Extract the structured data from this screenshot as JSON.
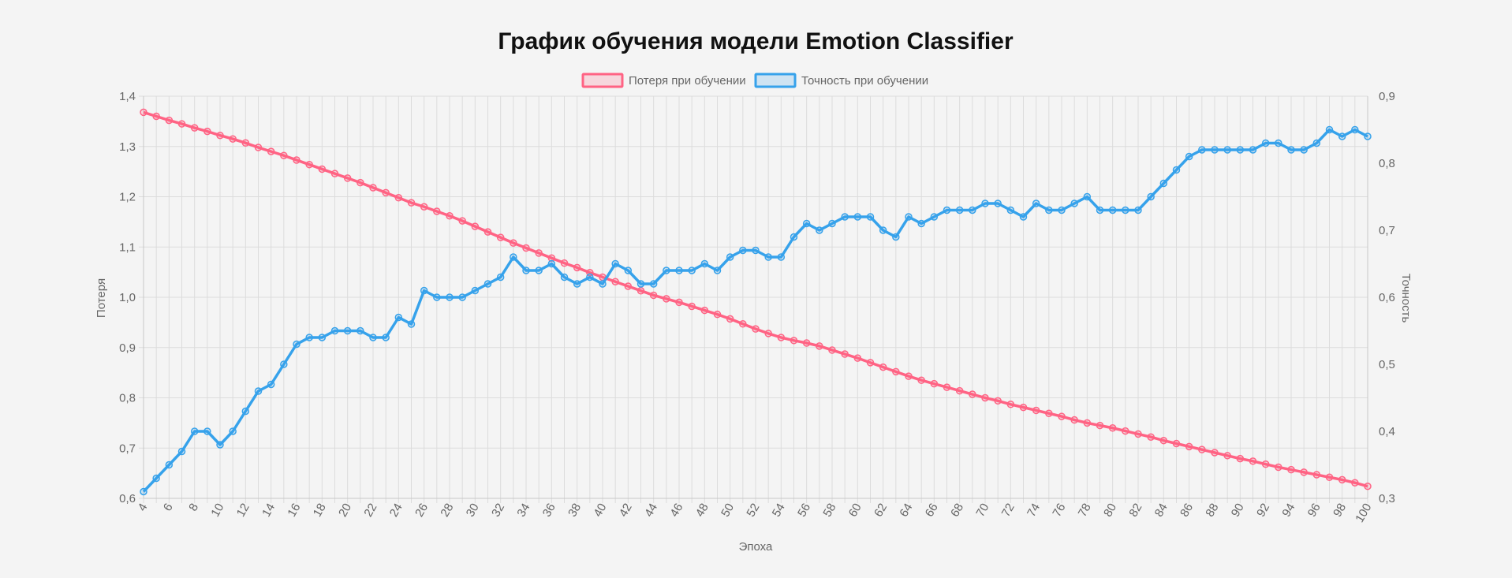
{
  "chart_data": {
    "type": "line",
    "title": "График обучения модели Emotion Classifier",
    "xlabel": "Эпоха",
    "ylabel": "Потеря",
    "y2label": "Точность",
    "x": [
      4,
      5,
      6,
      7,
      8,
      9,
      10,
      11,
      12,
      13,
      14,
      15,
      16,
      17,
      18,
      19,
      20,
      21,
      22,
      23,
      24,
      25,
      26,
      27,
      28,
      29,
      30,
      31,
      32,
      33,
      34,
      35,
      36,
      37,
      38,
      39,
      40,
      41,
      42,
      43,
      44,
      45,
      46,
      47,
      48,
      49,
      50,
      51,
      52,
      53,
      54,
      55,
      56,
      57,
      58,
      59,
      60,
      61,
      62,
      63,
      64,
      65,
      66,
      67,
      68,
      69,
      70,
      71,
      72,
      73,
      74,
      75,
      76,
      77,
      78,
      79,
      80,
      81,
      82,
      83,
      84,
      85,
      86,
      87,
      88,
      89,
      90,
      91,
      92,
      93,
      94,
      95,
      96,
      97,
      98,
      99,
      100
    ],
    "x_ticks": [
      4,
      6,
      8,
      10,
      12,
      14,
      16,
      18,
      20,
      22,
      24,
      26,
      28,
      30,
      32,
      34,
      36,
      38,
      40,
      42,
      44,
      46,
      48,
      50,
      52,
      54,
      56,
      58,
      60,
      62,
      64,
      66,
      68,
      70,
      72,
      74,
      76,
      78,
      80,
      82,
      84,
      86,
      88,
      90,
      92,
      94,
      96,
      98,
      100
    ],
    "ylim": [
      0.6,
      1.4
    ],
    "y_ticks": [
      "0,6",
      "0,7",
      "0,8",
      "0,9",
      "1,0",
      "1,1",
      "1,2",
      "1,3",
      "1,4"
    ],
    "y2lim": [
      0.3,
      0.9
    ],
    "y2_ticks": [
      "0,3",
      "0,4",
      "0,5",
      "0,6",
      "0,7",
      "0,8",
      "0,9"
    ],
    "grid": true,
    "legend_position": "top",
    "series": [
      {
        "name": "Потеря при обучении",
        "axis": "left",
        "color": "#ff6384",
        "fill": "rgba(255,99,132,0.2)",
        "values": [
          1.368,
          1.36,
          1.352,
          1.345,
          1.337,
          1.33,
          1.322,
          1.315,
          1.307,
          1.298,
          1.29,
          1.282,
          1.273,
          1.264,
          1.255,
          1.246,
          1.237,
          1.228,
          1.218,
          1.208,
          1.198,
          1.188,
          1.18,
          1.171,
          1.162,
          1.152,
          1.141,
          1.13,
          1.119,
          1.108,
          1.098,
          1.088,
          1.078,
          1.068,
          1.059,
          1.049,
          1.04,
          1.031,
          1.022,
          1.013,
          1.004,
          0.997,
          0.99,
          0.982,
          0.974,
          0.966,
          0.957,
          0.947,
          0.937,
          0.928,
          0.92,
          0.914,
          0.909,
          0.903,
          0.895,
          0.887,
          0.879,
          0.87,
          0.861,
          0.852,
          0.843,
          0.835,
          0.828,
          0.821,
          0.814,
          0.807,
          0.8,
          0.794,
          0.787,
          0.781,
          0.775,
          0.769,
          0.763,
          0.756,
          0.75,
          0.745,
          0.74,
          0.734,
          0.728,
          0.722,
          0.715,
          0.709,
          0.703,
          0.697,
          0.691,
          0.685,
          0.679,
          0.674,
          0.668,
          0.662,
          0.657,
          0.652,
          0.647,
          0.642,
          0.637,
          0.631,
          0.624
        ]
      },
      {
        "name": "Точность при обучении",
        "axis": "right",
        "color": "#36a2eb",
        "fill": "rgba(54,162,235,0.2)",
        "values": [
          0.31,
          0.33,
          0.35,
          0.37,
          0.4,
          0.4,
          0.38,
          0.4,
          0.43,
          0.46,
          0.47,
          0.5,
          0.53,
          0.54,
          0.54,
          0.55,
          0.55,
          0.55,
          0.54,
          0.54,
          0.57,
          0.56,
          0.61,
          0.6,
          0.6,
          0.6,
          0.61,
          0.62,
          0.63,
          0.66,
          0.64,
          0.64,
          0.65,
          0.63,
          0.62,
          0.63,
          0.62,
          0.65,
          0.64,
          0.62,
          0.62,
          0.64,
          0.64,
          0.64,
          0.65,
          0.64,
          0.66,
          0.67,
          0.67,
          0.66,
          0.66,
          0.69,
          0.71,
          0.7,
          0.71,
          0.72,
          0.72,
          0.72,
          0.7,
          0.69,
          0.72,
          0.71,
          0.72,
          0.73,
          0.73,
          0.73,
          0.74,
          0.74,
          0.73,
          0.72,
          0.74,
          0.73,
          0.73,
          0.74,
          0.75,
          0.73,
          0.73,
          0.73,
          0.73,
          0.75,
          0.77,
          0.79,
          0.81,
          0.82,
          0.82,
          0.82,
          0.82,
          0.82,
          0.83,
          0.83,
          0.82,
          0.82,
          0.83,
          0.85,
          0.84,
          0.85,
          0.84
        ]
      }
    ]
  }
}
